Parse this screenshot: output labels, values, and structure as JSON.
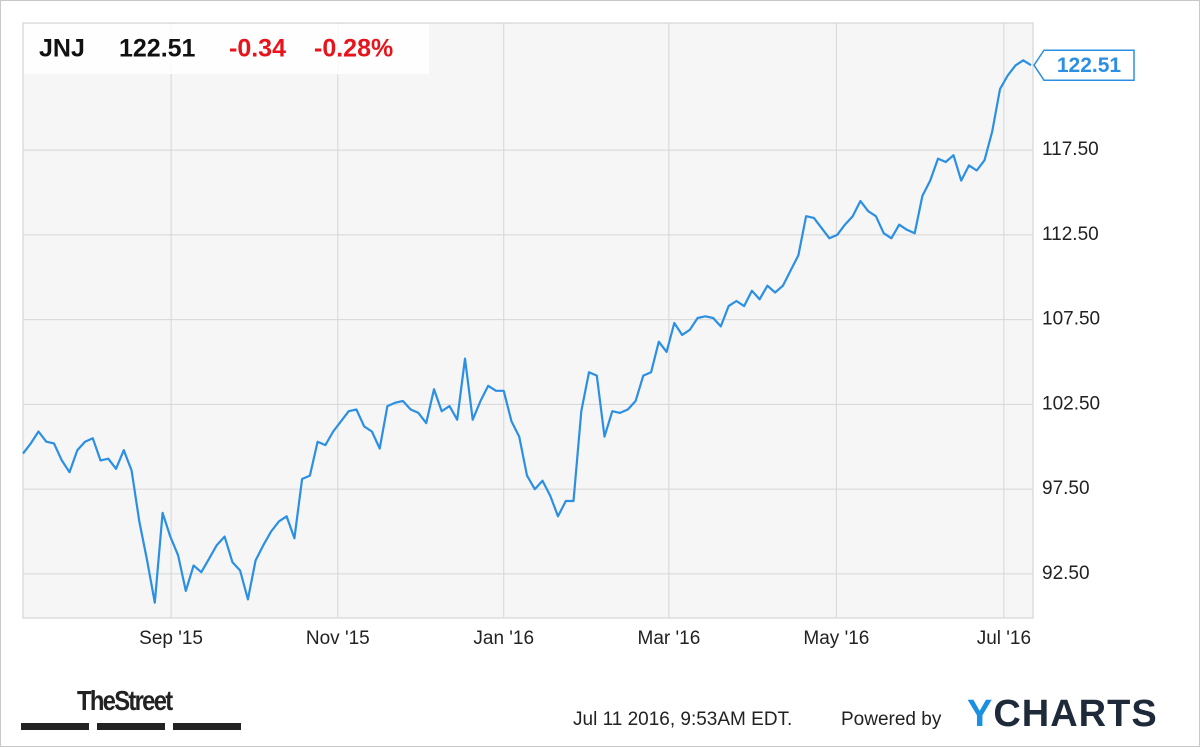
{
  "header": {
    "symbol": "JNJ",
    "price": "122.51",
    "change": "-0.34",
    "change_percent": "-0.28%"
  },
  "chart_data": {
    "type": "line",
    "values": [
      99.6,
      100.2,
      100.9,
      100.3,
      100.2,
      99.2,
      98.5,
      99.8,
      100.3,
      100.5,
      99.2,
      99.3,
      98.7,
      99.8,
      98.6,
      95.6,
      93.3,
      90.8,
      96.1,
      94.7,
      93.6,
      91.5,
      93.0,
      92.6,
      93.4,
      94.2,
      94.7,
      93.2,
      92.7,
      91.0,
      93.3,
      94.2,
      95.0,
      95.6,
      95.9,
      94.6,
      98.1,
      98.3,
      100.3,
      100.1,
      100.9,
      101.5,
      102.1,
      102.2,
      101.2,
      100.9,
      99.9,
      102.4,
      102.6,
      102.7,
      102.2,
      102.0,
      101.4,
      103.4,
      102.1,
      102.4,
      101.6,
      105.2,
      101.6,
      102.7,
      103.6,
      103.3,
      103.3,
      101.5,
      100.6,
      98.3,
      97.5,
      98.0,
      97.1,
      95.9,
      96.8,
      96.8,
      102.1,
      104.4,
      104.2,
      100.6,
      102.1,
      102.0,
      102.2,
      102.7,
      104.2,
      104.4,
      106.2,
      105.6,
      107.3,
      106.6,
      106.9,
      107.6,
      107.7,
      107.6,
      107.1,
      108.3,
      108.6,
      108.3,
      109.2,
      108.7,
      109.5,
      109.1,
      109.5,
      110.4,
      111.3,
      113.6,
      113.5,
      112.9,
      112.3,
      112.5,
      113.1,
      113.6,
      114.5,
      113.9,
      113.6,
      112.6,
      112.3,
      113.1,
      112.8,
      112.6,
      114.8,
      115.7,
      117.0,
      116.8,
      117.2,
      115.7,
      116.6,
      116.3,
      116.9,
      118.6,
      121.1,
      121.9,
      122.5,
      122.8,
      122.51
    ],
    "color": "#2b8fe3",
    "xlim": [
      0,
      130
    ],
    "xticks": [
      {
        "value": 19.1,
        "label": "Sep '15"
      },
      {
        "value": 40.6,
        "label": "Nov '15"
      },
      {
        "value": 62.0,
        "label": "Jan '16"
      },
      {
        "value": 83.3,
        "label": "Mar '16"
      },
      {
        "value": 104.9,
        "label": "May '16"
      },
      {
        "value": 126.5,
        "label": "Jul '16"
      }
    ],
    "ylim": [
      89.9,
      125
    ],
    "yticks": [
      {
        "value": 92.5,
        "label": "92.50"
      },
      {
        "value": 97.5,
        "label": "97.50"
      },
      {
        "value": 102.5,
        "label": "102.50"
      },
      {
        "value": 107.5,
        "label": "107.50"
      },
      {
        "value": 112.5,
        "label": "112.50"
      },
      {
        "value": 117.5,
        "label": "117.50"
      }
    ],
    "grid": true
  },
  "footer": {
    "brand": "TheStreet",
    "timestamp": "Jul 11 2016, 9:53AM EDT.",
    "powered_by": "Powered by",
    "provider": "YCHARTS"
  }
}
